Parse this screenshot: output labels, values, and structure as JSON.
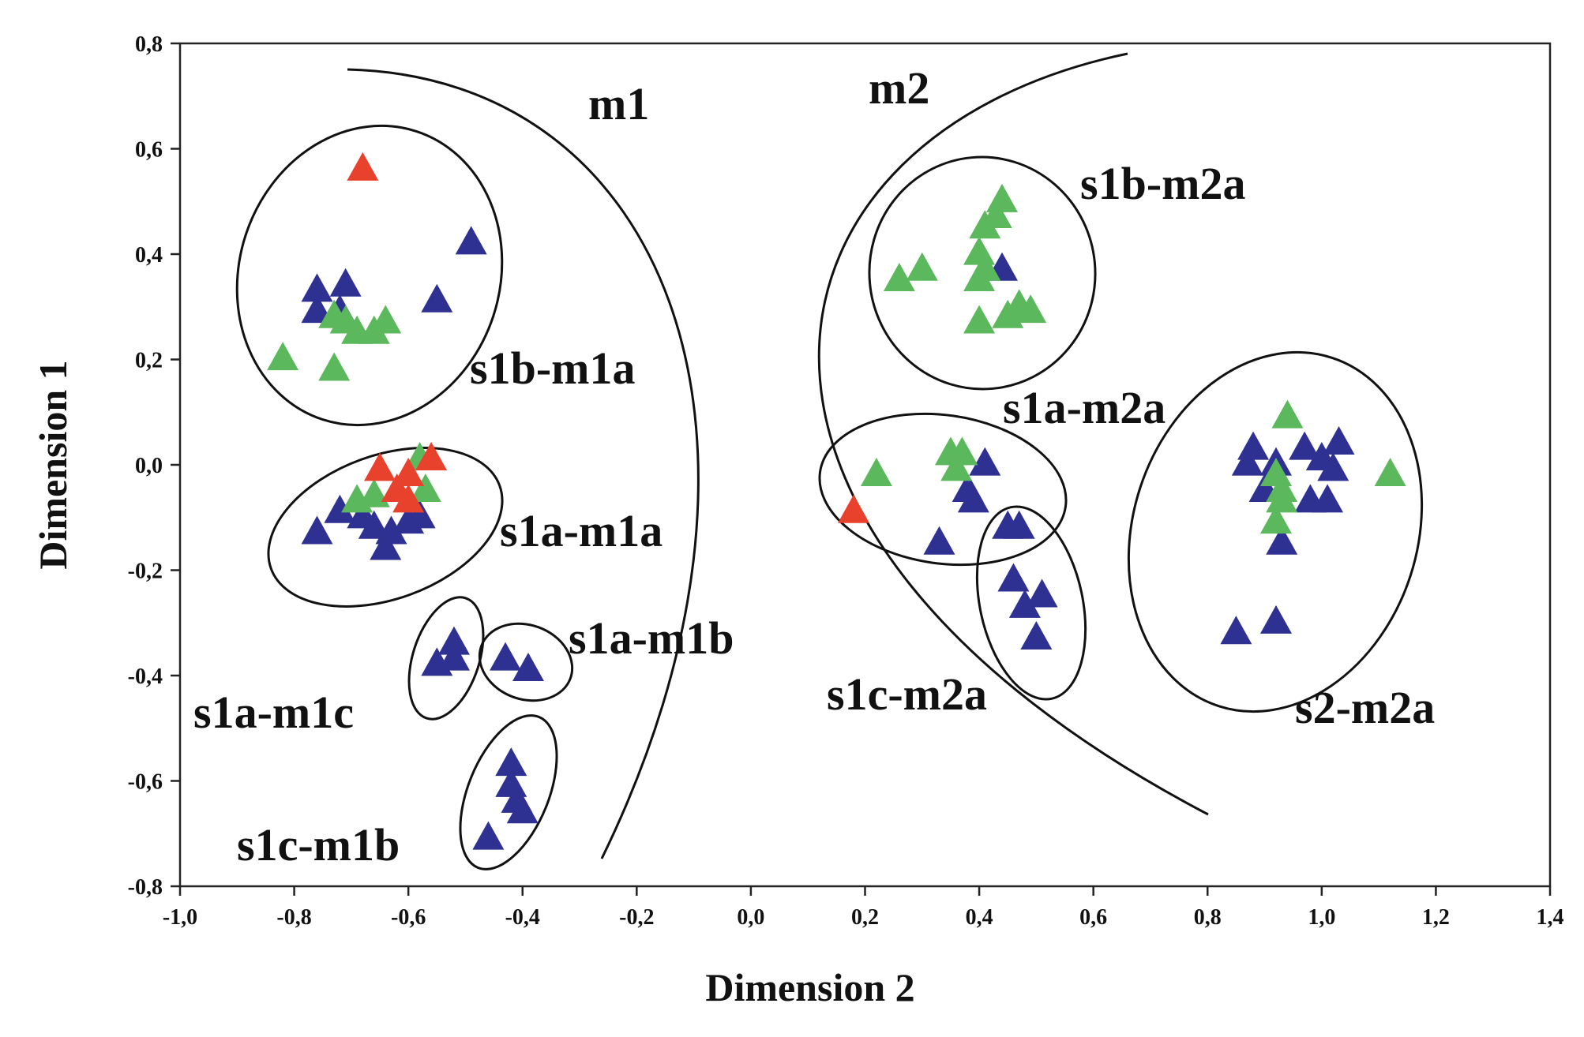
{
  "chart_data": {
    "type": "scatter",
    "xlabel": "Dimension 2",
    "ylabel": "Dimension 1",
    "xlim": [
      -1.0,
      1.4
    ],
    "ylim": [
      -0.8,
      0.8
    ],
    "x_ticks": [
      "-1,0",
      "-0,8",
      "-0,6",
      "-0,4",
      "-0,2",
      "0,0",
      "0,2",
      "0,4",
      "0,6",
      "0,8",
      "1,0",
      "1,2",
      "1,4"
    ],
    "y_ticks": [
      "0,8",
      "0,6",
      "0,4",
      "0,2",
      "0,0",
      "-0,2",
      "-0,4",
      "-0,6",
      "-0,8"
    ],
    "colors": {
      "blue": "#2e3192",
      "green": "#5cb85c",
      "red": "#e8412c"
    },
    "group_labels": [
      {
        "id": "m1",
        "text": "m1"
      },
      {
        "id": "m2",
        "text": "m2"
      }
    ],
    "clusters": [
      {
        "id": "s1b-m1a",
        "label": "s1b-m1a"
      },
      {
        "id": "s1a-m1a",
        "label": "s1a-m1a"
      },
      {
        "id": "s1a-m1c",
        "label": "s1a-m1c"
      },
      {
        "id": "s1a-m1b",
        "label": "s1a-m1b"
      },
      {
        "id": "s1c-m1b",
        "label": "s1c-m1b"
      },
      {
        "id": "s1b-m2a",
        "label": "s1b-m2a"
      },
      {
        "id": "s1a-m2a",
        "label": "s1a-m2a"
      },
      {
        "id": "s1c-m2a",
        "label": "s1c-m2a"
      },
      {
        "id": "s2-m2a",
        "label": "s2-m2a"
      }
    ],
    "series": [
      {
        "name": "blue",
        "color": "#2e3192",
        "points": [
          [
            -0.76,
            0.33
          ],
          [
            -0.76,
            0.29
          ],
          [
            -0.71,
            0.34
          ],
          [
            -0.72,
            0.29
          ],
          [
            -0.55,
            0.31
          ],
          [
            -0.49,
            0.42
          ],
          [
            -0.76,
            -0.13
          ],
          [
            -0.72,
            -0.09
          ],
          [
            -0.68,
            -0.1
          ],
          [
            -0.66,
            -0.12
          ],
          [
            -0.63,
            -0.13
          ],
          [
            -0.6,
            -0.11
          ],
          [
            -0.58,
            -0.1
          ],
          [
            -0.64,
            -0.16
          ],
          [
            -0.52,
            -0.34
          ],
          [
            -0.55,
            -0.38
          ],
          [
            -0.52,
            -0.37
          ],
          [
            -0.43,
            -0.37
          ],
          [
            -0.39,
            -0.39
          ],
          [
            -0.42,
            -0.57
          ],
          [
            -0.42,
            -0.61
          ],
          [
            -0.41,
            -0.64
          ],
          [
            -0.4,
            -0.66
          ],
          [
            -0.46,
            -0.71
          ],
          [
            0.44,
            0.37
          ],
          [
            0.41,
            0.0
          ],
          [
            0.38,
            -0.05
          ],
          [
            0.39,
            -0.07
          ],
          [
            0.33,
            -0.15
          ],
          [
            0.45,
            -0.12
          ],
          [
            0.47,
            -0.12
          ],
          [
            0.46,
            -0.22
          ],
          [
            0.48,
            -0.27
          ],
          [
            0.51,
            -0.25
          ],
          [
            0.5,
            -0.33
          ],
          [
            0.88,
            0.03
          ],
          [
            0.87,
            0.0
          ],
          [
            0.92,
            0.0
          ],
          [
            0.9,
            -0.05
          ],
          [
            0.97,
            0.03
          ],
          [
            1.0,
            0.01
          ],
          [
            1.03,
            0.04
          ],
          [
            1.02,
            -0.01
          ],
          [
            0.98,
            -0.07
          ],
          [
            1.01,
            -0.07
          ],
          [
            0.93,
            -0.15
          ],
          [
            0.85,
            -0.32
          ],
          [
            0.92,
            -0.3
          ]
        ]
      },
      {
        "name": "green",
        "color": "#5cb85c",
        "points": [
          [
            -0.82,
            0.2
          ],
          [
            -0.73,
            0.18
          ],
          [
            -0.73,
            0.28
          ],
          [
            -0.71,
            0.27
          ],
          [
            -0.69,
            0.25
          ],
          [
            -0.66,
            0.25
          ],
          [
            -0.64,
            0.27
          ],
          [
            -0.69,
            -0.07
          ],
          [
            -0.66,
            -0.06
          ],
          [
            -0.57,
            -0.05
          ],
          [
            -0.58,
            0.01
          ],
          [
            0.44,
            0.5
          ],
          [
            0.43,
            0.47
          ],
          [
            0.41,
            0.45
          ],
          [
            0.4,
            0.4
          ],
          [
            0.41,
            0.37
          ],
          [
            0.4,
            0.35
          ],
          [
            0.3,
            0.37
          ],
          [
            0.26,
            0.35
          ],
          [
            0.4,
            0.27
          ],
          [
            0.45,
            0.28
          ],
          [
            0.47,
            0.3
          ],
          [
            0.49,
            0.29
          ],
          [
            0.22,
            -0.02
          ],
          [
            0.35,
            0.02
          ],
          [
            0.37,
            0.02
          ],
          [
            0.36,
            -0.01
          ],
          [
            0.94,
            0.09
          ],
          [
            0.92,
            -0.02
          ],
          [
            0.93,
            -0.05
          ],
          [
            0.93,
            -0.07
          ],
          [
            0.92,
            -0.11
          ],
          [
            1.12,
            -0.02
          ]
        ]
      },
      {
        "name": "red",
        "color": "#e8412c",
        "points": [
          [
            -0.68,
            0.56
          ],
          [
            -0.65,
            -0.01
          ],
          [
            -0.62,
            -0.05
          ],
          [
            -0.6,
            -0.02
          ],
          [
            -0.6,
            -0.07
          ],
          [
            -0.56,
            0.01
          ],
          [
            0.18,
            -0.09
          ]
        ]
      }
    ]
  }
}
